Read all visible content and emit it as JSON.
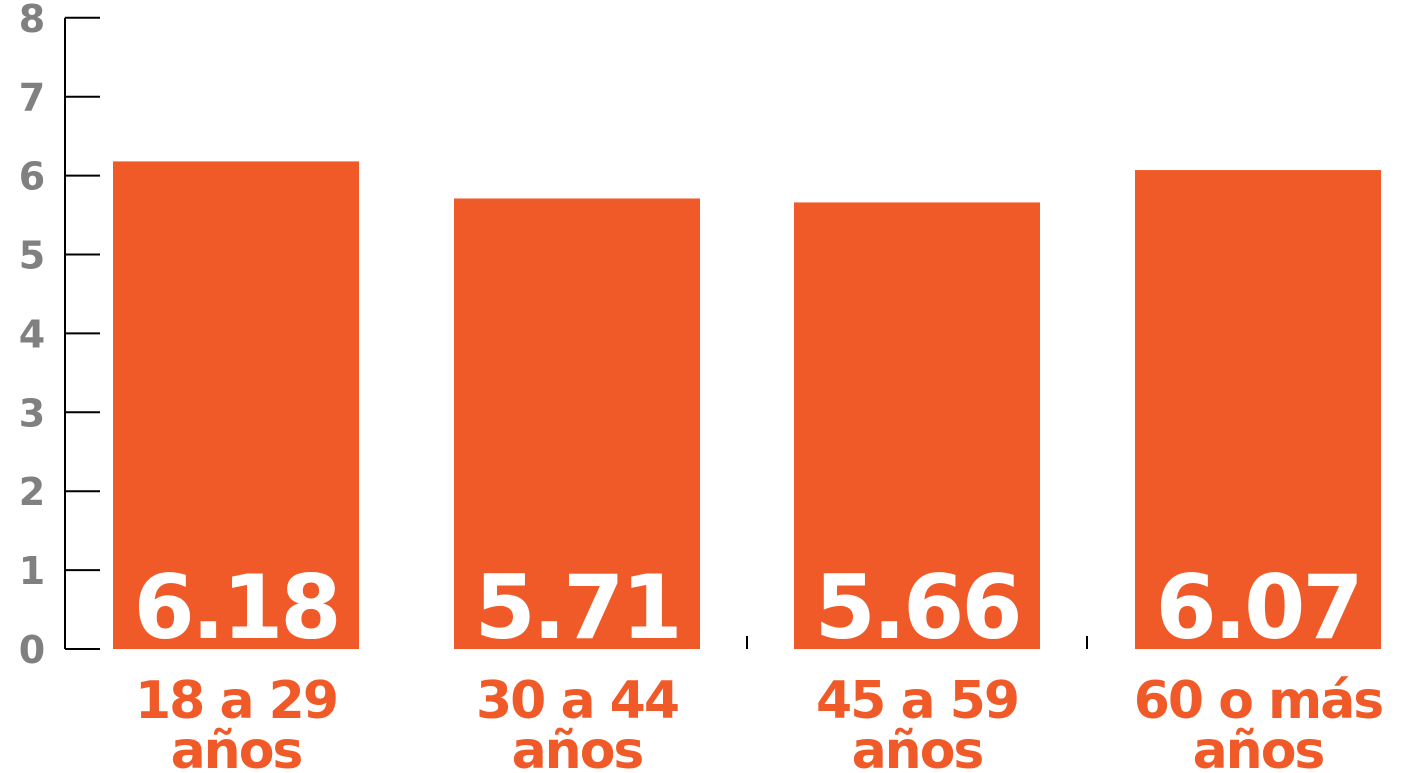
{
  "chart_data": {
    "type": "bar",
    "categories": [
      [
        "18 a 29",
        "años"
      ],
      [
        "30 a 44",
        "años"
      ],
      [
        "45 a 59",
        "años"
      ],
      [
        "60 o más",
        "años"
      ]
    ],
    "values": [
      6.18,
      5.71,
      5.66,
      6.07
    ],
    "value_labels": [
      "6.18",
      "5.71",
      "5.66",
      "6.07"
    ],
    "y_ticks": [
      "0",
      "1",
      "2",
      "3",
      "4",
      "5",
      "6",
      "7",
      "8"
    ],
    "ylim": [
      0,
      8
    ],
    "title": "",
    "xlabel": "",
    "ylabel": "",
    "grid": false,
    "bar_color": "#f05a28",
    "axis_color": "#000000",
    "tick_label_color": "#808080"
  }
}
